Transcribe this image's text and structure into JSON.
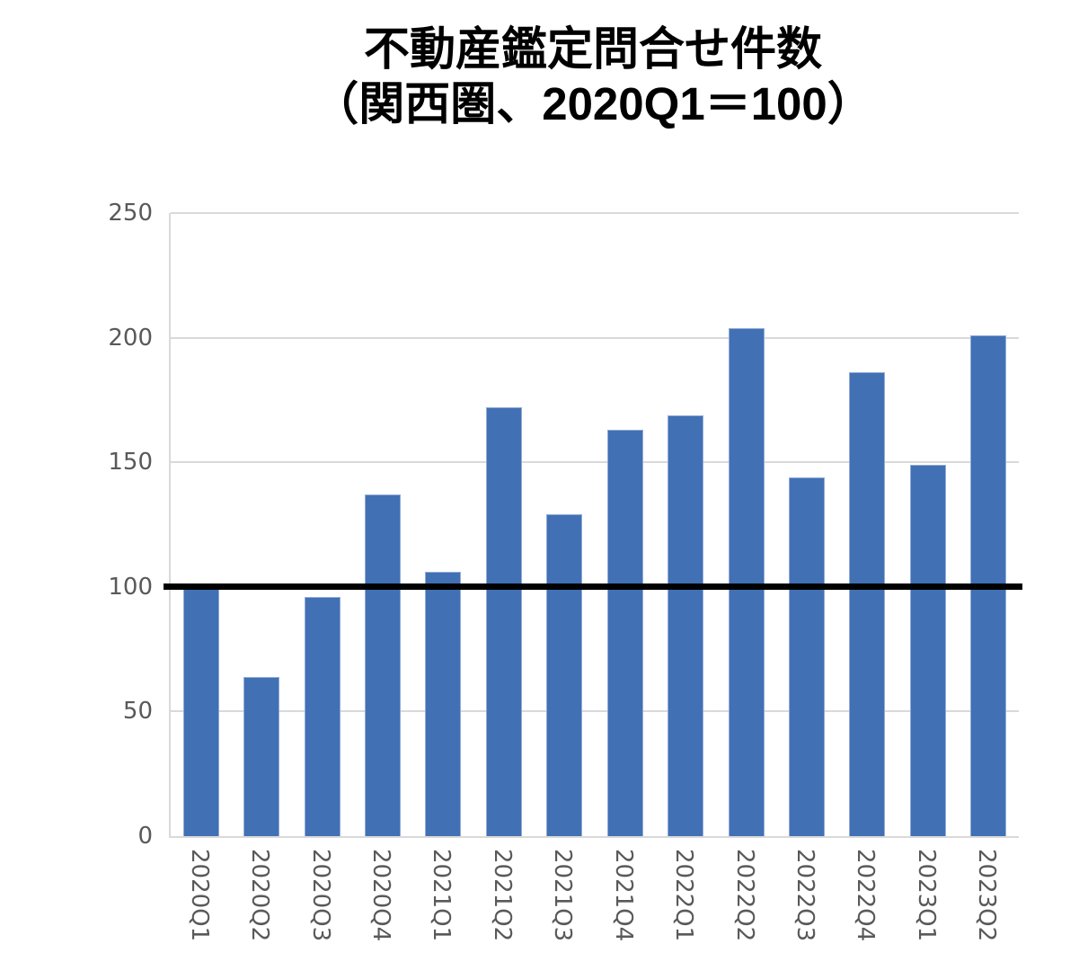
{
  "chart_data": {
    "type": "bar",
    "title_line1": "不動産鑑定問合せ件数",
    "title_line2": "（関西圏、2020Q1＝100）",
    "categories": [
      "2020Q1",
      "2020Q2",
      "2020Q3",
      "2020Q4",
      "2021Q1",
      "2021Q2",
      "2021Q3",
      "2021Q4",
      "2022Q1",
      "2022Q2",
      "2022Q3",
      "2022Q4",
      "2023Q1",
      "2023Q2"
    ],
    "values": [
      100,
      64,
      96,
      137,
      106,
      172,
      129,
      163,
      169,
      204,
      144,
      186,
      149,
      201
    ],
    "xlabel": "",
    "ylabel": "",
    "ylim": [
      0,
      250
    ],
    "yticks": [
      0,
      50,
      100,
      150,
      200,
      250
    ],
    "grid": true,
    "legend": "none",
    "reference_line": {
      "value": 100,
      "color": "#000000"
    },
    "colors": {
      "bar": "#4170b4",
      "bar_border": "#92abd6",
      "gridline": "#d9d9d9",
      "tick_label": "#595959",
      "title": "#000000",
      "background": "#ffffff"
    }
  }
}
